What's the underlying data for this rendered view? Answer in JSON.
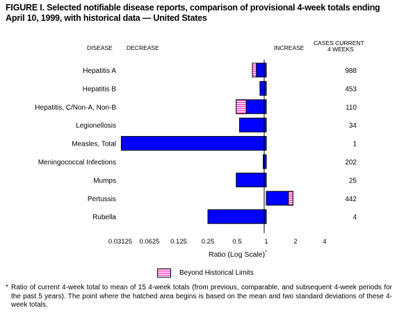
{
  "title": "FIGURE I. Selected notifiable disease reports, comparison of provisional 4-week totals ending April 10, 1999, with historical data — United States",
  "headers": {
    "disease": "DISEASE",
    "decrease": "DECREASE",
    "increase": "INCREASE",
    "cases_line1": "CASES CURRENT",
    "cases_line2": "4 WEEKS"
  },
  "axis_title": "Ratio (Log Scale)",
  "axis_title_mark": "*",
  "legend": {
    "label": "Beyond Historical Limits"
  },
  "footnote": {
    "symbol": "*",
    "text": "Ratio of current 4-week total to mean of 15 4-week totals (from previous, comparable, and subsequent 4-week periods for the past 5 years). The point where the hatched area begins is based on the mean and two standard deviations of these 4-week totals."
  },
  "colors": {
    "bar": "#0000ff",
    "hatch": "#ff33cc",
    "border": "#000000"
  },
  "chart_data": {
    "type": "bar",
    "orientation": "horizontal",
    "xscale": "log2",
    "xlim": [
      0.03125,
      4
    ],
    "baseline": 1,
    "ticks": [
      "0.03125",
      "0.0625",
      "0.125",
      "0.25",
      "0.5",
      "1",
      "2",
      "4"
    ],
    "tick_values": [
      0.03125,
      0.0625,
      0.125,
      0.25,
      0.5,
      1,
      2,
      4
    ],
    "categories": [
      "Hepatitis A",
      "Hepatitis B",
      "Hepatitis, C/Non-A, Non-B",
      "Legionellosis",
      "Measles, Total",
      "Meningococcal Infections",
      "Mumps",
      "Pertussis",
      "Rubella"
    ],
    "cases": [
      "988",
      "453",
      "110",
      "34",
      "1",
      "202",
      "25",
      "442",
      "4"
    ],
    "values": [
      0.72,
      0.86,
      0.49,
      0.53,
      0.032,
      0.93,
      0.49,
      1.88,
      0.25
    ],
    "beyond_limits_from": [
      0.79,
      null,
      0.62,
      null,
      null,
      null,
      null,
      1.69,
      null
    ]
  }
}
